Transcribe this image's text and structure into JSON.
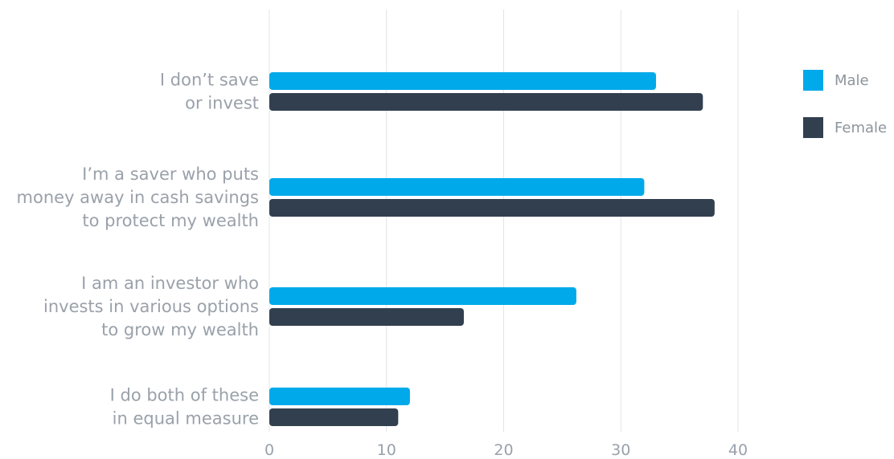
{
  "colors": {
    "male": "#00a9ea",
    "female": "#323f4f",
    "grid": "#e2e4e7",
    "text": "#9aa1aa"
  },
  "chart_data": {
    "type": "bar",
    "orientation": "horizontal",
    "categories": [
      [
        "I don’t save",
        "or invest"
      ],
      [
        "I’m a saver who puts",
        "money away in cash savings",
        "to protect my wealth"
      ],
      [
        "I am an investor who",
        "invests in various options",
        "to grow my wealth"
      ],
      [
        "I do both of these",
        "in equal measure"
      ]
    ],
    "series": [
      {
        "name": "Male",
        "color": "#00a9ea",
        "values": [
          33,
          32,
          26.2,
          12
        ]
      },
      {
        "name": "Female",
        "color": "#323f4f",
        "values": [
          37,
          38,
          16.6,
          11
        ]
      }
    ],
    "xlim": [
      0,
      40
    ],
    "xticks": [
      "0",
      "10",
      "20",
      "30",
      "40"
    ],
    "grid": true,
    "legend_position": "top-right"
  }
}
